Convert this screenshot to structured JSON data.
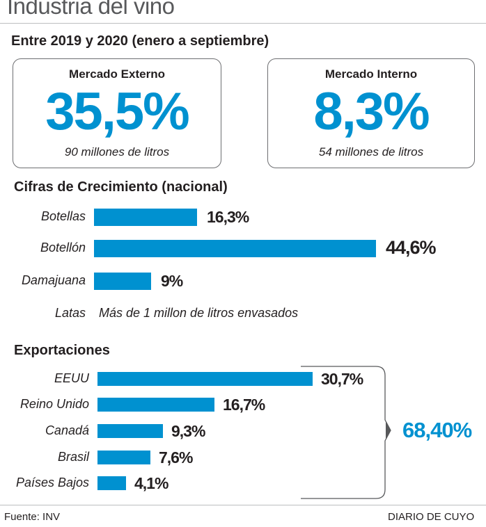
{
  "header": {
    "title": "Industria del vino",
    "period": "Entre 2019 y 2020 (enero a septiembre)"
  },
  "cards": [
    {
      "title": "Mercado Externo",
      "value": "35,5%",
      "note": "90 millones de litros"
    },
    {
      "title": "Mercado Interno",
      "value": "8,3%",
      "note": "54 millones de litros"
    }
  ],
  "colors": {
    "accent": "#0091d0",
    "text": "#231f20"
  },
  "chart_data": [
    {
      "type": "bar",
      "orientation": "horizontal",
      "title": "Cifras de Crecimiento (nacional)",
      "categories": [
        "Botellas",
        "Botellón",
        "Damajuana"
      ],
      "values": [
        16.3,
        44.6,
        9
      ],
      "value_labels": [
        "16,3%",
        "44,6%",
        "9%"
      ],
      "xlim": [
        0,
        44.6
      ],
      "note_label": "Latas",
      "note_text": "Más de 1 millon de litros envasados"
    },
    {
      "type": "bar",
      "orientation": "horizontal",
      "title": "Exportaciones",
      "categories": [
        "EEUU",
        "Reino Unido",
        "Canadá",
        "Brasil",
        "Países Bajos"
      ],
      "values": [
        30.7,
        16.7,
        9.3,
        7.6,
        4.1
      ],
      "value_labels": [
        "30,7%",
        "16,7%",
        "9,3%",
        "7,6%",
        "4,1%"
      ],
      "xlim": [
        0,
        30.7
      ],
      "total_label": "68,40%"
    }
  ],
  "footer": {
    "source": "Fuente: INV",
    "brand": "DIARIO DE CUYO"
  }
}
